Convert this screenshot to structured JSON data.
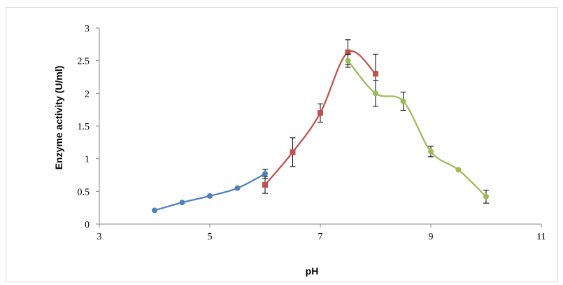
{
  "chart_data": {
    "type": "scatter",
    "xlabel": "pH",
    "ylabel": "Enzyme activity (U/ml)",
    "xlim": [
      3,
      11
    ],
    "ylim": [
      0,
      3
    ],
    "xticks": [
      3,
      5,
      7,
      9,
      11
    ],
    "yticks": [
      0,
      0.5,
      1,
      1.5,
      2,
      2.5,
      3
    ],
    "xtick_labels": [
      "3",
      "5",
      "7",
      "9",
      "11"
    ],
    "ytick_labels": [
      "0",
      "0.5",
      "1",
      "1.5",
      "2",
      "2.5",
      "3"
    ],
    "grid": false,
    "legend": false,
    "series": [
      {
        "color": "#4f81bd",
        "marker": "circle",
        "points": [
          {
            "x": 4,
            "y": 0.21
          },
          {
            "x": 4.5,
            "y": 0.33
          },
          {
            "x": 5,
            "y": 0.43
          },
          {
            "x": 5.5,
            "y": 0.55
          },
          {
            "x": 6,
            "y": 0.77,
            "err": 0.07
          }
        ]
      },
      {
        "color": "#c0504d",
        "marker": "square",
        "points": [
          {
            "x": 6,
            "y": 0.6,
            "err": 0.13
          },
          {
            "x": 6.5,
            "y": 1.1,
            "err": 0.22
          },
          {
            "x": 7,
            "y": 1.7,
            "err": 0.14
          },
          {
            "x": 7.5,
            "y": 2.63,
            "err": 0.19
          },
          {
            "x": 8,
            "y": 2.3,
            "err": 0.3
          }
        ]
      },
      {
        "color": "#9bbb59",
        "marker": "circle",
        "points": [
          {
            "x": 7.5,
            "y": 2.5,
            "err": 0.1
          },
          {
            "x": 8,
            "y": 2.0,
            "err": 0.2
          },
          {
            "x": 8.5,
            "y": 1.88,
            "err": 0.14
          },
          {
            "x": 9,
            "y": 1.11,
            "err": 0.08
          },
          {
            "x": 9.5,
            "y": 0.83
          },
          {
            "x": 10,
            "y": 0.42,
            "err": 0.1
          }
        ]
      }
    ]
  }
}
